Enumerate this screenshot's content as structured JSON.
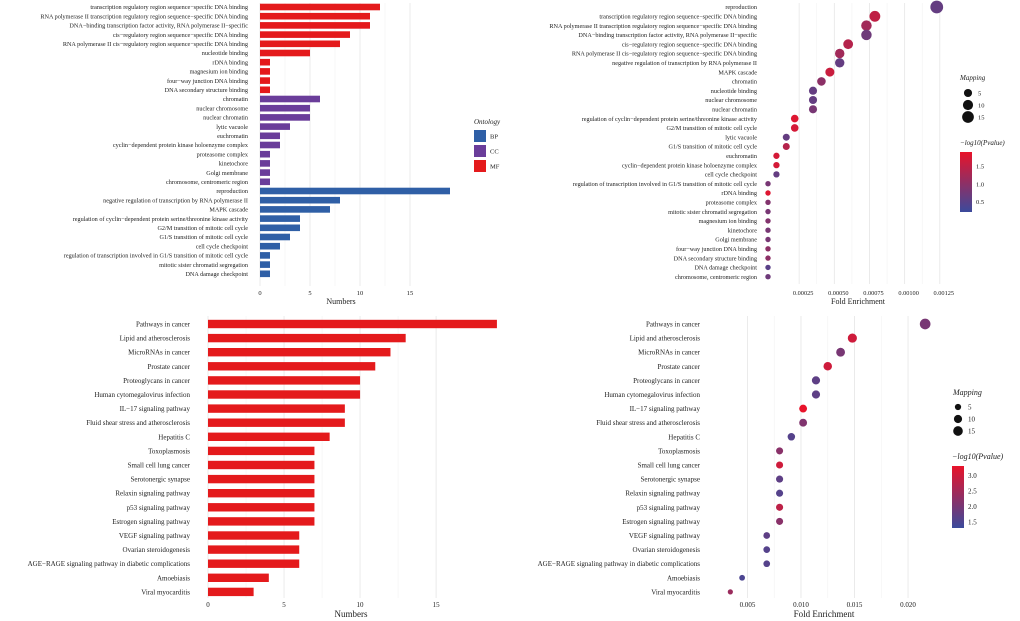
{
  "chart_data": [
    {
      "type": "bar",
      "orientation": "horizontal",
      "xlabel": "Numbers",
      "xlim": [
        0,
        20
      ],
      "xticks": [
        0,
        5,
        10,
        15
      ],
      "grid": true,
      "legend": {
        "title": "Ontology",
        "placement": "right",
        "entries": [
          {
            "name": "BP",
            "color": "#2f5fa6"
          },
          {
            "name": "CC",
            "color": "#6a3d9a"
          },
          {
            "name": "MF",
            "color": "#e41a1c"
          }
        ]
      },
      "categories": [
        "transcription regulatory region sequence−specific DNA binding",
        "RNA polymerase II transcription regulatory region sequence−specific DNA binding",
        "DNA−binding transcription factor activity, RNA polymerase II−specific",
        "cis−regulatory region sequence−specific DNA binding",
        "RNA polymerase II cis−regulatory region sequence−specific DNA binding",
        "nucleotide binding",
        "rDNA binding",
        "magnesium ion binding",
        "four−way junction DNA binding",
        "DNA secondary structure binding",
        "chromatin",
        "nuclear chromosome",
        "nuclear chromatin",
        "lytic vacuole",
        "euchromatin",
        "cyclin−dependent protein kinase holoenzyme complex",
        "proteasome complex",
        "kinetochore",
        "Golgi membrane",
        "chromosome, centromeric region",
        "reproduction",
        "negative regulation of transcription by RNA polymerase II",
        "MAPK cascade",
        "regulation of cyclin−dependent protein serine/threonine kinase activity",
        "G2/M transition of mitotic cell cycle",
        "G1/S transition of mitotic cell cycle",
        "cell cycle checkpoint",
        "regulation of transcription involved in G1/S transition of mitotic cell cycle",
        "mitotic sister chromatid segregation",
        "DNA damage checkpoint"
      ],
      "values": [
        12,
        11,
        11,
        9,
        8,
        5,
        1,
        1,
        1,
        1,
        6,
        5,
        5,
        3,
        2,
        2,
        1,
        1,
        1,
        1,
        19,
        8,
        7,
        4,
        4,
        3,
        2,
        1,
        1,
        1
      ],
      "groups": [
        "MF",
        "MF",
        "MF",
        "MF",
        "MF",
        "MF",
        "MF",
        "MF",
        "MF",
        "MF",
        "CC",
        "CC",
        "CC",
        "CC",
        "CC",
        "CC",
        "CC",
        "CC",
        "CC",
        "CC",
        "BP",
        "BP",
        "BP",
        "BP",
        "BP",
        "BP",
        "BP",
        "BP",
        "BP",
        "BP"
      ]
    },
    {
      "type": "scatter",
      "xlabel": "Fold Enrichment",
      "xlim": [
        0.0,
        0.00128
      ],
      "xticks": [
        0.00025,
        0.0005,
        0.00075,
        0.001,
        0.00125
      ],
      "xtick_labels": [
        "0.00025",
        "0.00050",
        "0.00075",
        "0.00100",
        "0.00125"
      ],
      "grid": true,
      "size_legend": {
        "title": "Mapping",
        "values": [
          5,
          10,
          15
        ]
      },
      "color_legend": {
        "title": "−log10(Pvalue)",
        "ticks": [
          0.5,
          1.0,
          1.5
        ],
        "tick_labels": [
          "0.5",
          "1.0",
          "1.5"
        ],
        "range": [
          0.2,
          1.9
        ],
        "low_color": "#3b4a9c",
        "high_color": "#e8132a"
      },
      "categories": [
        "reproduction",
        "transcription regulatory region sequence−specific DNA binding",
        "RNA polymerase II transcription regulatory region sequence−specific DNA binding",
        "DNA−binding transcription factor activity, RNA polymerase II−specific",
        "cis−regulatory region sequence−specific DNA binding",
        "RNA polymerase II cis−regulatory region sequence−specific DNA binding",
        "negative regulation of transcription by RNA polymerase II",
        "MAPK cascade",
        "chromatin",
        "nucleotide binding",
        "nuclear chromosome",
        "nuclear chromatin",
        "regulation of cyclin−dependent protein serine/threonine kinase activity",
        "G2/M transition of mitotic cell cycle",
        "lytic vacuole",
        "G1/S transition of mitotic cell cycle",
        "euchromatin",
        "cyclin−dependent protein kinase holoenzyme complex",
        "cell cycle checkpoint",
        "regulation of transcription involved in G1/S transition of mitotic cell cycle",
        "rDNA binding",
        "proteasome complex",
        "mitotic sister chromatid segregation",
        "magnesium ion binding",
        "kinetochore",
        "Golgi membrane",
        "four−way junction DNA binding",
        "DNA secondary structure binding",
        "DNA damage checkpoint",
        "chromosome, centromeric region"
      ],
      "x": [
        0.0012,
        0.00076,
        0.0007,
        0.0007,
        0.00057,
        0.00051,
        0.00051,
        0.00044,
        0.00038,
        0.00032,
        0.00032,
        0.00032,
        0.00019,
        0.00019,
        0.00013,
        0.00013,
        6e-05,
        6e-05,
        6e-05,
        0.0,
        0.0,
        0.0,
        0.0,
        0.0,
        0.0,
        0.0,
        0.0,
        0.0,
        0.0,
        0.0
      ],
      "size": [
        19,
        12,
        11,
        11,
        9,
        8,
        8,
        7,
        6,
        5,
        5,
        5,
        4,
        4,
        3,
        3,
        2,
        2,
        2,
        1,
        1,
        1,
        1,
        1,
        1,
        1,
        1,
        1,
        1,
        1
      ],
      "color_value": [
        0.6,
        1.5,
        1.2,
        0.7,
        1.4,
        1.2,
        0.6,
        1.6,
        1.0,
        0.6,
        0.6,
        0.8,
        1.8,
        1.7,
        0.6,
        1.4,
        1.7,
        1.7,
        0.6,
        0.8,
        1.8,
        0.9,
        0.8,
        0.9,
        0.8,
        0.8,
        1.0,
        1.0,
        0.5,
        0.7
      ]
    },
    {
      "type": "bar",
      "orientation": "horizontal",
      "xlabel": "Numbers",
      "xlim": [
        0,
        19.4
      ],
      "xticks": [
        0,
        5,
        10,
        15
      ],
      "grid": true,
      "color": "#e41a1c",
      "categories": [
        "Pathways in cancer",
        "Lipid and atherosclerosis",
        "MicroRNAs in cancer",
        "Prostate cancer",
        "Proteoglycans in cancer",
        "Human cytomegalovirus infection",
        "IL−17 signaling pathway",
        "Fluid shear stress and atherosclerosis",
        "Hepatitis C",
        "Toxoplasmosis",
        "Small cell lung cancer",
        "Serotonergic synapse",
        "Relaxin signaling pathway",
        "p53 signaling pathway",
        "Estrogen signaling pathway",
        "VEGF signaling pathway",
        "Ovarian steroidogenesis",
        "AGE−RAGE signaling pathway in diabetic complications",
        "Amoebiasis",
        "Viral myocarditis"
      ],
      "values": [
        19,
        13,
        12,
        11,
        10,
        10,
        9,
        9,
        8,
        7,
        7,
        7,
        7,
        7,
        7,
        6,
        6,
        6,
        4,
        3
      ]
    },
    {
      "type": "scatter",
      "xlabel": "Fold Enrichment",
      "xlim": [
        0.0015,
        0.0228
      ],
      "xticks": [
        0.005,
        0.01,
        0.015,
        0.02
      ],
      "xtick_labels": [
        "0.005",
        "0.010",
        "0.015",
        "0.020"
      ],
      "grid": true,
      "size_legend": {
        "title": "Mapping",
        "values": [
          5,
          10,
          15
        ]
      },
      "color_legend": {
        "title": "−log10(Pvalue)",
        "ticks": [
          1.5,
          2.0,
          2.5,
          3.0
        ],
        "tick_labels": [
          "1.5",
          "2.0",
          "2.5",
          "3.0"
        ],
        "range": [
          1.3,
          3.3
        ],
        "low_color": "#3b4a9c",
        "high_color": "#e8132a"
      },
      "categories": [
        "Pathways in cancer",
        "Lipid and atherosclerosis",
        "MicroRNAs in cancer",
        "Prostate cancer",
        "Proteoglycans in cancer",
        "Human cytomegalovirus infection",
        "IL−17 signaling pathway",
        "Fluid shear stress and atherosclerosis",
        "Hepatitis C",
        "Toxoplasmosis",
        "Small cell lung cancer",
        "Serotonergic synapse",
        "Relaxin signaling pathway",
        "p53 signaling pathway",
        "Estrogen signaling pathway",
        "VEGF signaling pathway",
        "Ovarian steroidogenesis",
        "AGE−RAGE signaling pathway in diabetic complications",
        "Amoebiasis",
        "Viral myocarditis"
      ],
      "x": [
        0.0216,
        0.0148,
        0.0137,
        0.0125,
        0.0114,
        0.0114,
        0.0102,
        0.0102,
        0.0091,
        0.008,
        0.008,
        0.008,
        0.008,
        0.008,
        0.008,
        0.0068,
        0.0068,
        0.0068,
        0.0045,
        0.0034
      ],
      "size": [
        19,
        13,
        12,
        11,
        10,
        10,
        9,
        9,
        8,
        7,
        7,
        7,
        7,
        7,
        7,
        6,
        6,
        6,
        4,
        3
      ],
      "color_value": [
        2.0,
        3.0,
        2.0,
        3.0,
        1.7,
        1.7,
        3.3,
        2.1,
        1.6,
        2.2,
        3.0,
        1.7,
        1.6,
        2.8,
        2.2,
        1.7,
        1.6,
        1.6,
        1.5,
        2.4
      ]
    }
  ]
}
